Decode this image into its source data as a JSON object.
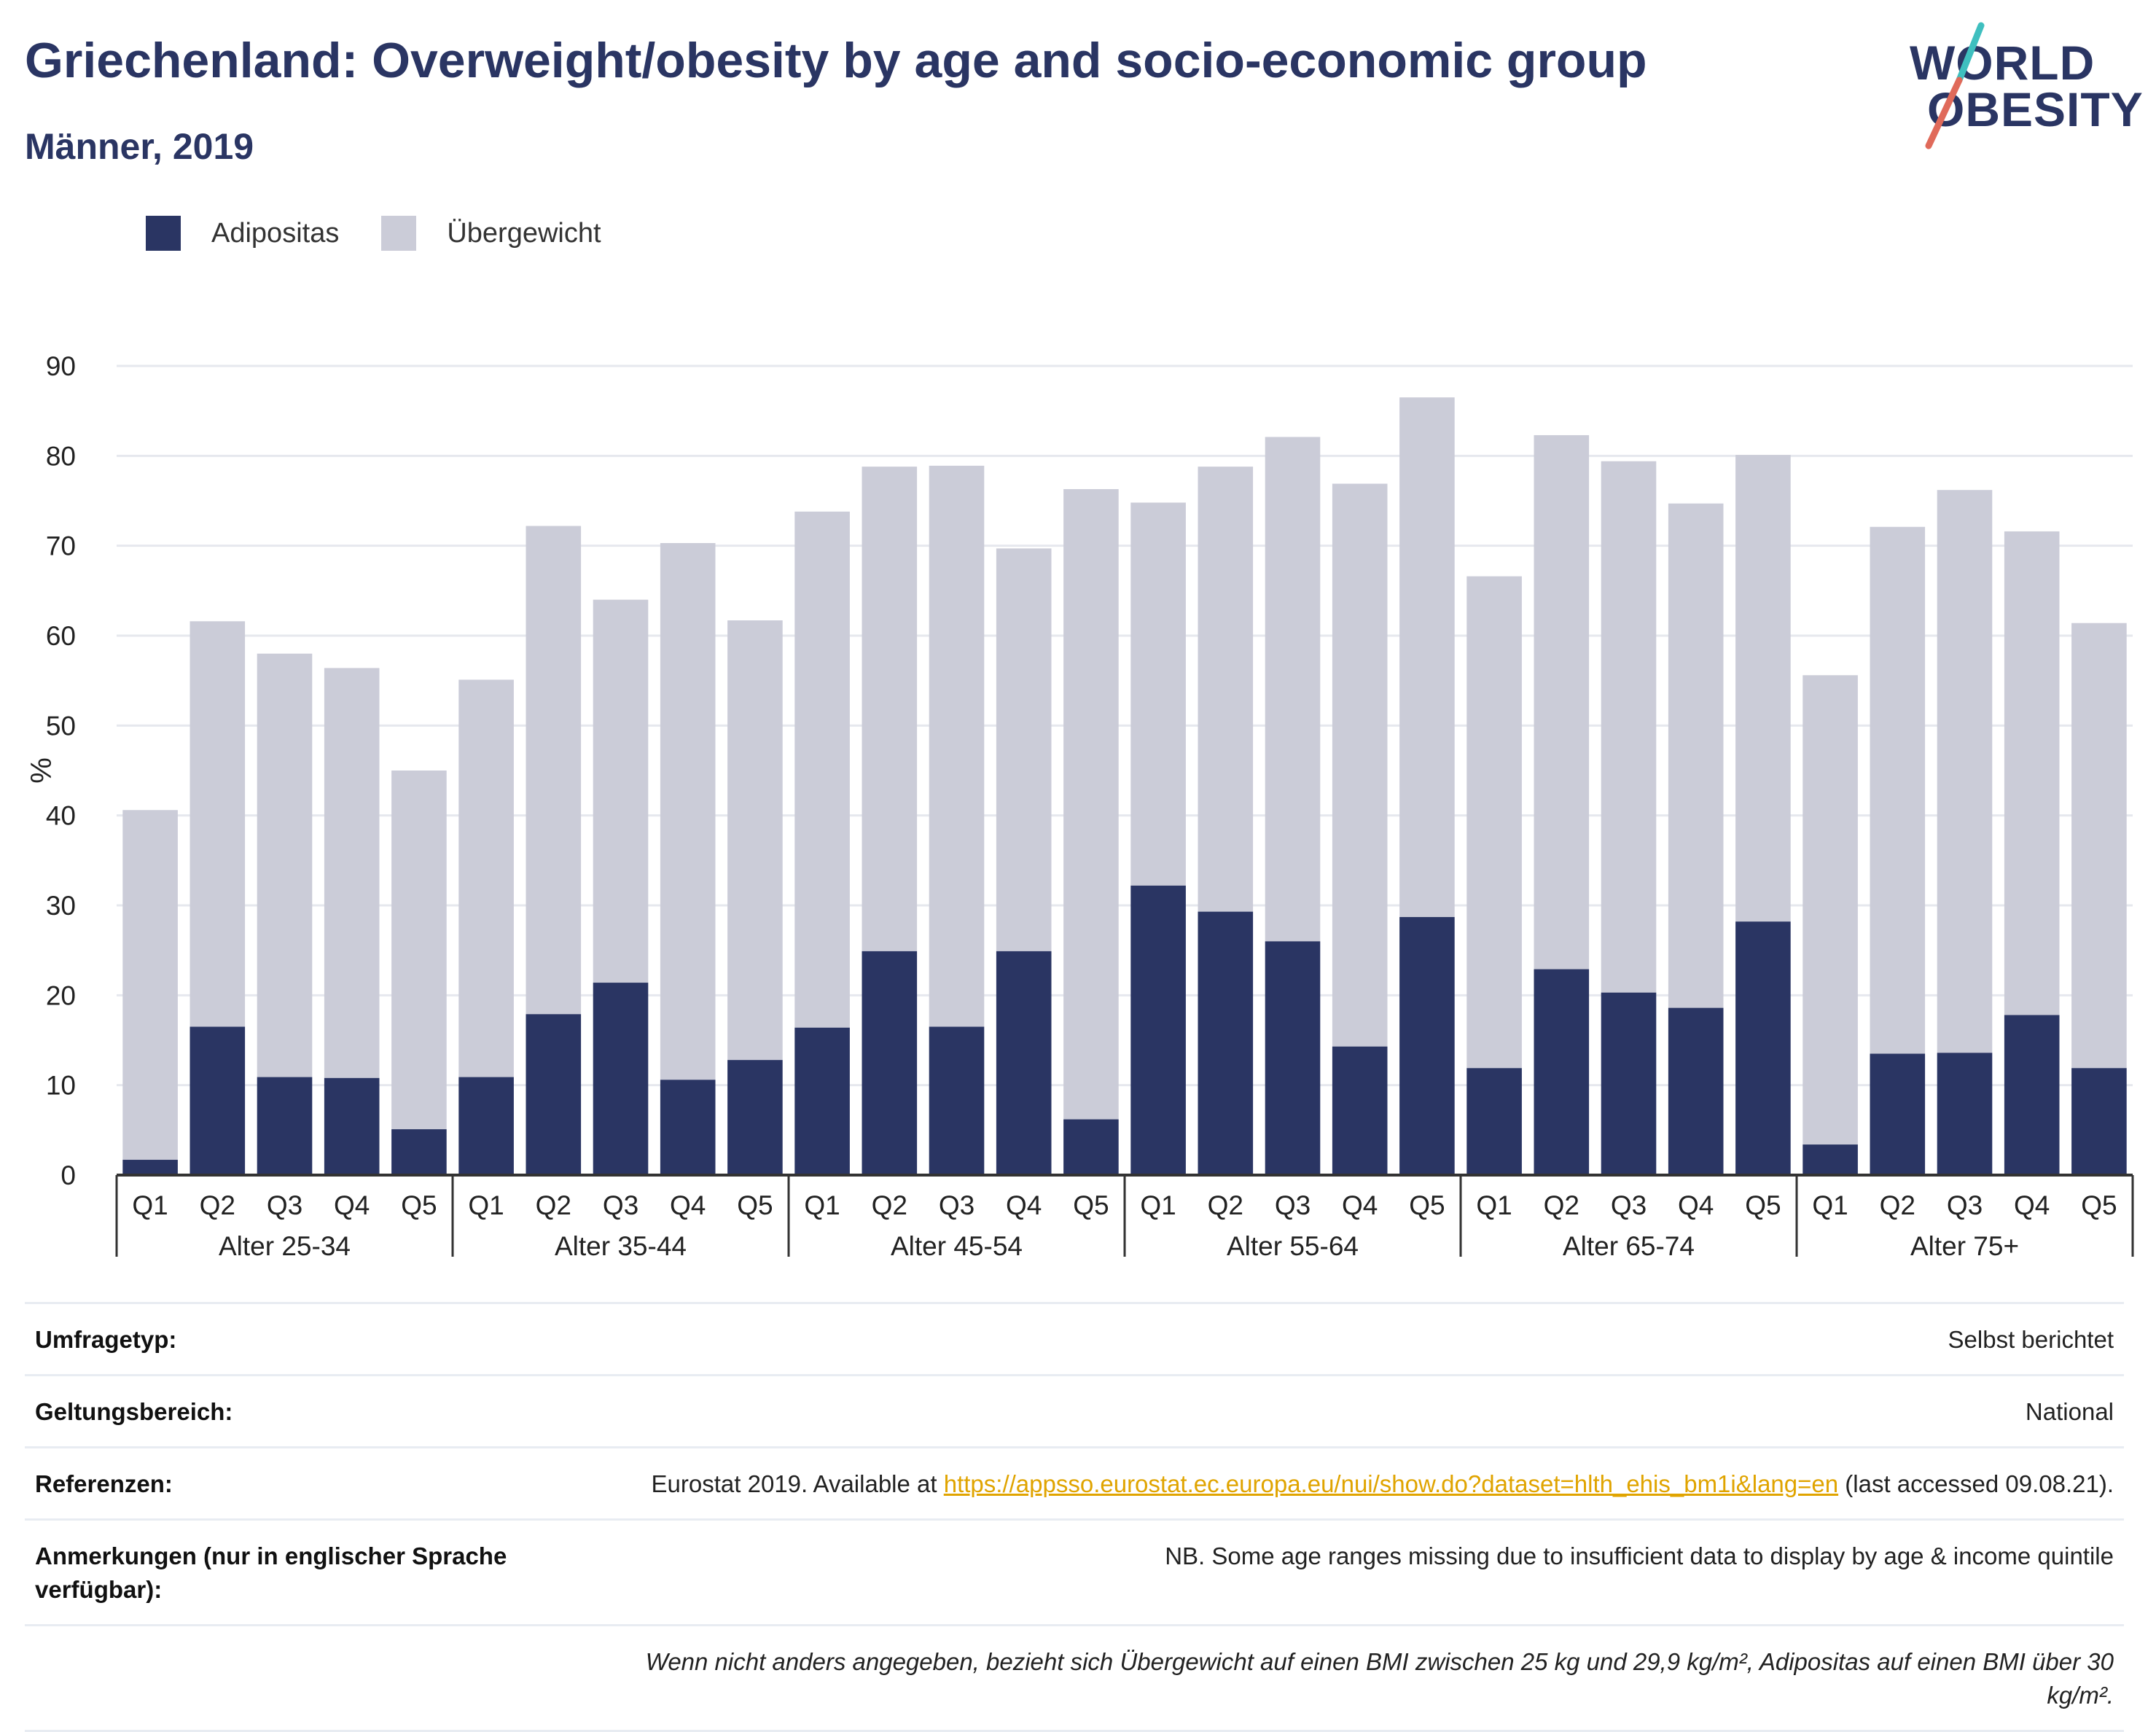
{
  "header": {
    "title": "Griechenland: Overweight/obesity by age and socio-economic group",
    "subtitle": "Männer, 2019"
  },
  "logo": {
    "line1": "WORLD",
    "line2": "OBESITY"
  },
  "colors": {
    "obesity": "#2a3563",
    "overweight": "#cbccd8",
    "title": "#2a3563",
    "link": "#e0a400"
  },
  "chart_data": {
    "type": "bar",
    "stacked": true,
    "ylabel": "%",
    "ylim": [
      0,
      90
    ],
    "yticks": [
      0,
      10,
      20,
      30,
      40,
      50,
      60,
      70,
      80,
      90
    ],
    "grid": true,
    "legend_position": "top-left",
    "groups": [
      "Alter 25-34",
      "Alter 35-44",
      "Alter 45-54",
      "Alter 55-64",
      "Alter 65-74",
      "Alter 75+"
    ],
    "categories": [
      "Q1",
      "Q2",
      "Q3",
      "Q4",
      "Q5"
    ],
    "series": [
      {
        "name": "Adipositas",
        "values": [
          [
            1.7,
            16.5,
            10.9,
            10.8,
            5.1
          ],
          [
            10.9,
            17.9,
            21.4,
            10.6,
            12.8
          ],
          [
            16.4,
            24.9,
            16.5,
            24.9,
            6.2
          ],
          [
            32.2,
            29.3,
            26.0,
            14.3,
            28.7
          ],
          [
            11.9,
            22.9,
            20.3,
            18.6,
            28.2
          ],
          [
            3.4,
            13.5,
            13.6,
            17.8,
            11.9
          ]
        ]
      },
      {
        "name": "Übergewicht",
        "values": [
          [
            38.9,
            45.1,
            47.1,
            45.6,
            39.9
          ],
          [
            44.2,
            54.3,
            42.6,
            59.7,
            48.9
          ],
          [
            57.4,
            53.9,
            62.4,
            44.8,
            70.1
          ],
          [
            42.6,
            49.5,
            56.1,
            62.6,
            57.8
          ],
          [
            54.7,
            59.4,
            59.1,
            56.1,
            51.9
          ],
          [
            52.2,
            58.6,
            62.6,
            53.8,
            49.5
          ]
        ]
      }
    ]
  },
  "info": {
    "survey_label": "Umfragetyp:",
    "survey_value": "Selbst berichtet",
    "coverage_label": "Geltungsbereich:",
    "coverage_value": "National",
    "refs_label": "Referenzen:",
    "refs_prefix": "Eurostat 2019. Available at ",
    "refs_link": "https://appsso.eurostat.ec.europa.eu/nui/show.do?dataset=hlth_ehis_bm1i&lang=en",
    "refs_suffix": " (last accessed 09.08.21).",
    "notes_label": "Anmerkungen (nur in englischer Sprache verfügbar):",
    "notes_value": "NB. Some age ranges missing due to insufficient data to display by age & income quintile",
    "footnote": "Wenn nicht anders angegeben, bezieht sich Übergewicht auf einen BMI zwischen 25 kg und 29,9 kg/m², Adipositas auf einen BMI über 30 kg/m²."
  }
}
